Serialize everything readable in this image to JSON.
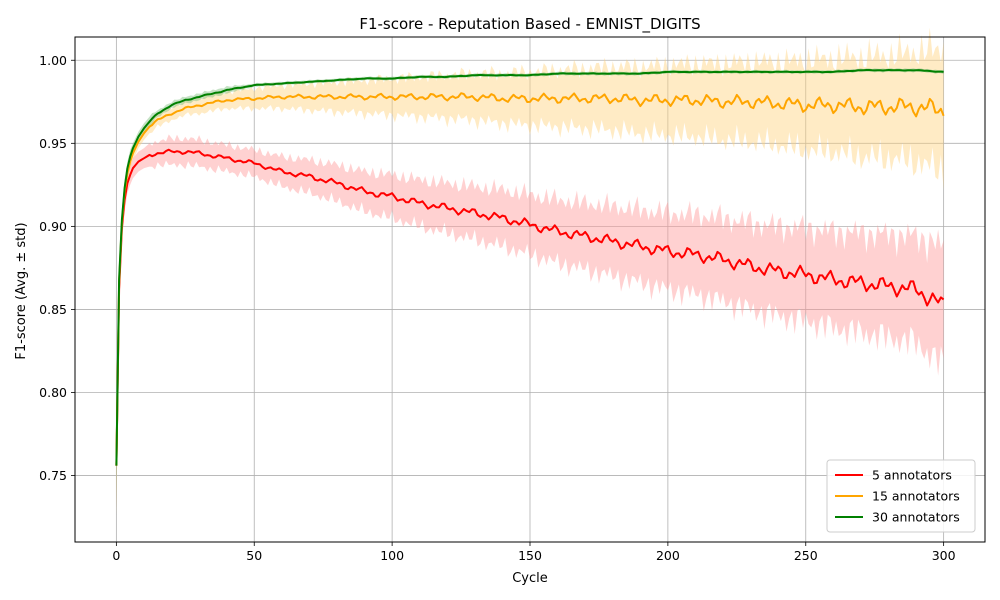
{
  "chart_data": {
    "type": "line",
    "title": "F1-score - Reputation Based - EMNIST_DIGITS",
    "xlabel": "Cycle",
    "ylabel": "F1-score (Avg. ± std)",
    "xlim": [
      -15,
      315
    ],
    "ylim": [
      0.71,
      1.014
    ],
    "xticks": [
      0,
      50,
      100,
      150,
      200,
      250,
      300
    ],
    "yticks": [
      0.75,
      0.8,
      0.85,
      0.9,
      0.95,
      1.0
    ],
    "ytick_labels": [
      "0.75",
      "0.80",
      "0.85",
      "0.90",
      "0.95",
      "1.00"
    ],
    "grid": true,
    "legend_position": "bottom-right",
    "series": [
      {
        "name": "5 annotators",
        "color": "#ff0000",
        "band_color": "#ff9999",
        "x": [
          0,
          1,
          2,
          3,
          4,
          5,
          6,
          8,
          10,
          12,
          15,
          20,
          25,
          30,
          40,
          50,
          60,
          70,
          80,
          90,
          100,
          110,
          120,
          130,
          140,
          150,
          160,
          170,
          180,
          190,
          200,
          210,
          220,
          230,
          240,
          250,
          260,
          270,
          280,
          290,
          300
        ],
        "mean": [
          0.756,
          0.862,
          0.899,
          0.916,
          0.926,
          0.931,
          0.935,
          0.939,
          0.941,
          0.943,
          0.944,
          0.945,
          0.945,
          0.944,
          0.941,
          0.938,
          0.933,
          0.93,
          0.926,
          0.921,
          0.918,
          0.914,
          0.911,
          0.908,
          0.905,
          0.901,
          0.897,
          0.894,
          0.891,
          0.888,
          0.885,
          0.883,
          0.88,
          0.876,
          0.873,
          0.871,
          0.868,
          0.866,
          0.864,
          0.862,
          0.852
        ],
        "std": [
          0.03,
          0.012,
          0.009,
          0.007,
          0.006,
          0.006,
          0.006,
          0.006,
          0.006,
          0.007,
          0.007,
          0.008,
          0.008,
          0.008,
          0.008,
          0.008,
          0.009,
          0.01,
          0.011,
          0.012,
          0.013,
          0.014,
          0.015,
          0.016,
          0.017,
          0.018,
          0.019,
          0.02,
          0.021,
          0.022,
          0.023,
          0.024,
          0.025,
          0.026,
          0.027,
          0.028,
          0.029,
          0.03,
          0.031,
          0.032,
          0.036
        ]
      },
      {
        "name": "15 annotators",
        "color": "#ffa500",
        "band_color": "#ffd27f",
        "x": [
          0,
          1,
          2,
          3,
          4,
          5,
          6,
          8,
          10,
          12,
          15,
          20,
          25,
          30,
          40,
          50,
          60,
          70,
          80,
          90,
          100,
          110,
          120,
          130,
          140,
          150,
          160,
          170,
          180,
          190,
          200,
          210,
          220,
          230,
          240,
          250,
          260,
          270,
          280,
          290,
          300
        ],
        "mean": [
          0.756,
          0.866,
          0.902,
          0.921,
          0.932,
          0.939,
          0.944,
          0.951,
          0.956,
          0.96,
          0.964,
          0.968,
          0.971,
          0.973,
          0.976,
          0.977,
          0.978,
          0.978,
          0.978,
          0.978,
          0.978,
          0.978,
          0.978,
          0.978,
          0.977,
          0.977,
          0.977,
          0.977,
          0.977,
          0.976,
          0.976,
          0.976,
          0.975,
          0.975,
          0.974,
          0.973,
          0.973,
          0.972,
          0.972,
          0.972,
          0.97
        ],
        "std": [
          0.03,
          0.01,
          0.008,
          0.006,
          0.005,
          0.005,
          0.004,
          0.004,
          0.004,
          0.004,
          0.004,
          0.004,
          0.004,
          0.005,
          0.005,
          0.006,
          0.007,
          0.008,
          0.009,
          0.01,
          0.011,
          0.012,
          0.013,
          0.014,
          0.015,
          0.016,
          0.017,
          0.018,
          0.019,
          0.02,
          0.021,
          0.022,
          0.023,
          0.024,
          0.025,
          0.027,
          0.028,
          0.03,
          0.031,
          0.033,
          0.037
        ]
      },
      {
        "name": "30 annotators",
        "color": "#008000",
        "band_color": "#7fbf7f",
        "x": [
          0,
          1,
          2,
          3,
          4,
          5,
          6,
          8,
          10,
          12,
          15,
          20,
          25,
          30,
          40,
          50,
          60,
          70,
          80,
          90,
          100,
          110,
          120,
          130,
          140,
          150,
          160,
          170,
          180,
          190,
          200,
          210,
          220,
          230,
          240,
          250,
          260,
          270,
          280,
          290,
          300
        ],
        "mean": [
          0.756,
          0.868,
          0.904,
          0.923,
          0.935,
          0.942,
          0.947,
          0.954,
          0.959,
          0.963,
          0.968,
          0.973,
          0.976,
          0.978,
          0.982,
          0.985,
          0.986,
          0.987,
          0.988,
          0.989,
          0.989,
          0.99,
          0.99,
          0.991,
          0.991,
          0.991,
          0.992,
          0.992,
          0.992,
          0.992,
          0.993,
          0.993,
          0.993,
          0.993,
          0.993,
          0.993,
          0.993,
          0.994,
          0.994,
          0.994,
          0.993
        ],
        "std": [
          0.03,
          0.009,
          0.007,
          0.005,
          0.004,
          0.004,
          0.003,
          0.003,
          0.003,
          0.003,
          0.002,
          0.002,
          0.002,
          0.002,
          0.002,
          0.001,
          0.001,
          0.001,
          0.001,
          0.001,
          0.001,
          0.001,
          0.001,
          0.001,
          0.001,
          0.001,
          0.001,
          0.001,
          0.001,
          0.001,
          0.001,
          0.001,
          0.001,
          0.001,
          0.001,
          0.001,
          0.001,
          0.001,
          0.001,
          0.001,
          0.001
        ]
      }
    ]
  }
}
